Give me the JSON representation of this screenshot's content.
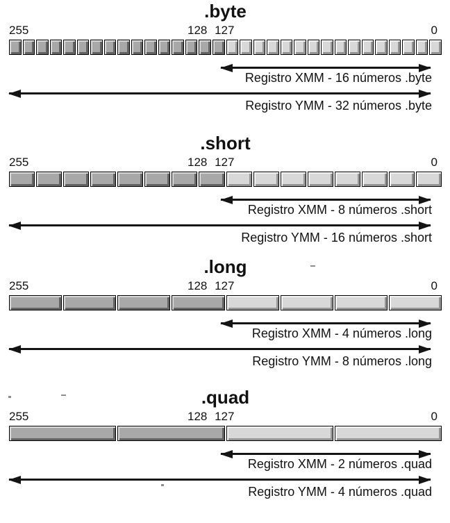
{
  "colors": {
    "upper_cell": "#a8a8a8",
    "lower_cell": "#d8d8d8",
    "cell_outline": "#000000",
    "arrow": "#141414",
    "text": "#111111"
  },
  "sections": [
    {
      "title": ".byte",
      "bit_left": "255",
      "bit_mid": "128 127",
      "bit_right": "0",
      "cells_total": 32,
      "cells_xmm": 16,
      "xmm_label": "Registro XMM - 16 números .byte",
      "ymm_label": "Registro YMM - 32 números .byte"
    },
    {
      "title": ".short",
      "bit_left": "255",
      "bit_mid": "128 127",
      "bit_right": "0",
      "cells_total": 16,
      "cells_xmm": 8,
      "xmm_label": "Registro XMM - 8 números .short",
      "ymm_label": "Registro YMM - 16 números .short"
    },
    {
      "title": ".long",
      "bit_left": "255",
      "bit_mid": "128 127",
      "bit_right": "0",
      "cells_total": 8,
      "cells_xmm": 4,
      "xmm_label": "Registro XMM - 4 números .long",
      "ymm_label": "Registro YMM - 8 números .long"
    },
    {
      "title": ".quad",
      "bit_left": "255",
      "bit_mid": "128 127",
      "bit_right": "0",
      "cells_total": 4,
      "cells_xmm": 2,
      "xmm_label": "Registro XMM - 2 números .quad",
      "ymm_label": "Registro YMM - 4 números .quad"
    }
  ]
}
